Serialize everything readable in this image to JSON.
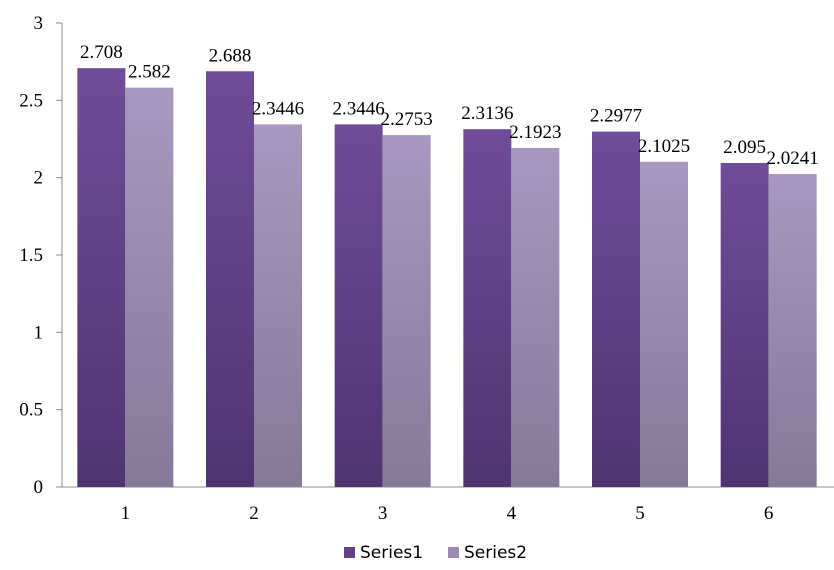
{
  "chart_data": {
    "type": "bar",
    "categories": [
      "1",
      "2",
      "3",
      "4",
      "5",
      "6"
    ],
    "series": [
      {
        "name": "Series1",
        "values": [
          2.708,
          2.688,
          2.3446,
          2.3136,
          2.2977,
          2.095
        ],
        "color": "#634287"
      },
      {
        "name": "Series2",
        "values": [
          2.582,
          2.3446,
          2.2753,
          2.1923,
          2.1025,
          2.0241
        ],
        "color": "#9b8bb3"
      }
    ],
    "data_labels": [
      [
        "2.708",
        "2.688",
        "2.3446",
        "2.3136",
        "2.2977",
        "2.095"
      ],
      [
        "2.582",
        "2.3446",
        "2.2753",
        "2.1923",
        "2.1025",
        "2.0241"
      ]
    ],
    "y_ticks": [
      "0",
      "0.5",
      "1",
      "1.5",
      "2",
      "2.5",
      "3"
    ],
    "ylim": [
      0,
      3
    ],
    "grid": false,
    "legend_position": "bottom",
    "title": "",
    "xlabel": "",
    "ylabel": ""
  }
}
